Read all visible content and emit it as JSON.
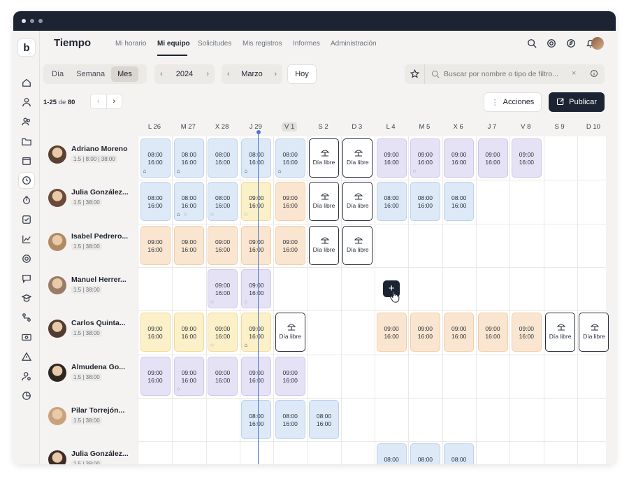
{
  "app": {
    "title": "Tiempo"
  },
  "nav": [
    {
      "label": "Mi horario"
    },
    {
      "label": "Mi equipo"
    },
    {
      "label": "Solicitudes"
    },
    {
      "label": "Mis registros"
    },
    {
      "label": "Informes"
    },
    {
      "label": "Administración"
    }
  ],
  "nav_active": "Mi equipo",
  "view_modes": [
    "Día",
    "Semana",
    "Mes"
  ],
  "view_active": "Mes",
  "year": "2024",
  "month": "Marzo",
  "today_label": "Hoy",
  "search": {
    "placeholder": "Buscar por nombre o tipo de filtro..."
  },
  "pagination": {
    "range": "1-25",
    "of_label": "de",
    "total": "80"
  },
  "actions_label": "Acciones",
  "publish_label": "Publicar",
  "days": [
    "L 26",
    "M 27",
    "X 28",
    "J 29",
    "V 1",
    "S 2",
    "D 3",
    "L 4",
    "M 5",
    "X 6",
    "J 7",
    "V 8",
    "S 9",
    "D 10"
  ],
  "today_index": 4,
  "free_label": "Día libre",
  "colors": {
    "blue": "#dde9f7",
    "purple": "#e6e2f5",
    "orange": "#fae6d0",
    "yellow": "#fbf0c8",
    "primary": "#1c2433",
    "today_line": "#4b78c9"
  },
  "people": [
    {
      "name": "Adriano Moreno",
      "meta": "1.5 | 8:00 | 38:00",
      "avatar": "#5a4030"
    },
    {
      "name": "Julia González...",
      "meta": "1.5 | 38:00",
      "avatar": "#6b4a3a"
    },
    {
      "name": "Isabel Pedrero...",
      "meta": "1.5 | 38:00",
      "avatar": "#b08a62"
    },
    {
      "name": "Manuel Herrer...",
      "meta": "1.5 | 38:00",
      "avatar": "#9b7a66"
    },
    {
      "name": "Carlos Quinta...",
      "meta": "1.5 | 38:00",
      "avatar": "#4f3b30"
    },
    {
      "name": "Almudena Go...",
      "meta": "1.5 | 38:00",
      "avatar": "#2f2622"
    },
    {
      "name": "Pilar Torrejón...",
      "meta": "1.5 | 38:00",
      "avatar": "#c9a27c"
    },
    {
      "name": "Julia González...",
      "meta": "1.5 | 38:00",
      "avatar": "#3e2c26"
    }
  ],
  "shifts": [
    [
      {
        "d": 0,
        "c": "blue",
        "s": "08:00",
        "e": "16:00",
        "i": "home-icon"
      },
      {
        "d": 1,
        "c": "blue",
        "s": "08:00",
        "e": "16:00",
        "i": "home-icon"
      },
      {
        "d": 2,
        "c": "blue",
        "s": "08:00",
        "e": "16:00"
      },
      {
        "d": 3,
        "c": "blue",
        "s": "08:00",
        "e": "16:00",
        "i": "home-icon"
      },
      {
        "d": 4,
        "c": "blue",
        "s": "08:00",
        "e": "16:00",
        "i": "home-icon"
      },
      {
        "d": 5,
        "c": "free"
      },
      {
        "d": 6,
        "c": "free"
      },
      {
        "d": 7,
        "c": "purple",
        "s": "09:00",
        "e": "16:00"
      },
      {
        "d": 8,
        "c": "purple",
        "s": "09:00",
        "e": "16:00",
        "i": "comment-icon"
      },
      {
        "d": 9,
        "c": "purple",
        "s": "09:00",
        "e": "16:00"
      },
      {
        "d": 10,
        "c": "purple",
        "s": "09:00",
        "e": "16:00"
      },
      {
        "d": 11,
        "c": "purple",
        "s": "09:00",
        "e": "16:00"
      }
    ],
    [
      {
        "d": 0,
        "c": "blue",
        "s": "08:00",
        "e": "16:00"
      },
      {
        "d": 1,
        "c": "blue",
        "s": "08:00",
        "e": "16:00",
        "i": "home-icon",
        "i2": "comment-icon"
      },
      {
        "d": 2,
        "c": "blue",
        "s": "08:00",
        "e": "16:00",
        "i": "comment-icon"
      },
      {
        "d": 3,
        "c": "yellow",
        "s": "09:00",
        "e": "16:00",
        "i": "comment-icon"
      },
      {
        "d": 4,
        "c": "orange",
        "s": "09:00",
        "e": "16:00"
      },
      {
        "d": 5,
        "c": "free"
      },
      {
        "d": 6,
        "c": "free"
      },
      {
        "d": 7,
        "c": "blue",
        "s": "08:00",
        "e": "16:00"
      },
      {
        "d": 8,
        "c": "blue",
        "s": "08:00",
        "e": "16:00"
      },
      {
        "d": 9,
        "c": "blue",
        "s": "08:00",
        "e": "16:00"
      }
    ],
    [
      {
        "d": 0,
        "c": "orange",
        "s": "09:00",
        "e": "16:00"
      },
      {
        "d": 1,
        "c": "orange",
        "s": "09:00",
        "e": "16:00"
      },
      {
        "d": 2,
        "c": "orange",
        "s": "09:00",
        "e": "16:00"
      },
      {
        "d": 3,
        "c": "orange",
        "s": "09:00",
        "e": "16:00"
      },
      {
        "d": 4,
        "c": "orange",
        "s": "09:00",
        "e": "16:00"
      },
      {
        "d": 5,
        "c": "free"
      },
      {
        "d": 6,
        "c": "free"
      }
    ],
    [
      {
        "d": 2,
        "c": "purple",
        "s": "09:00",
        "e": "16:00",
        "i": "comment-icon"
      },
      {
        "d": 3,
        "c": "purple",
        "s": "09:00",
        "e": "16:00",
        "i": "comment-icon"
      }
    ],
    [
      {
        "d": 0,
        "c": "yellow",
        "s": "09:00",
        "e": "16:00"
      },
      {
        "d": 1,
        "c": "yellow",
        "s": "09:00",
        "e": "16:00"
      },
      {
        "d": 2,
        "c": "yellow",
        "s": "09:00",
        "e": "16:00",
        "i": "comment-icon"
      },
      {
        "d": 3,
        "c": "yellow",
        "s": "09:00",
        "e": "16:00",
        "i": "home-icon"
      },
      {
        "d": 4,
        "c": "free"
      },
      {
        "d": 7,
        "c": "orange",
        "s": "09:00",
        "e": "16:00"
      },
      {
        "d": 8,
        "c": "orange",
        "s": "09:00",
        "e": "16:00"
      },
      {
        "d": 9,
        "c": "orange",
        "s": "09:00",
        "e": "16:00"
      },
      {
        "d": 10,
        "c": "orange",
        "s": "09:00",
        "e": "16:00"
      },
      {
        "d": 11,
        "c": "orange",
        "s": "09:00",
        "e": "16:00"
      },
      {
        "d": 12,
        "c": "free"
      },
      {
        "d": 13,
        "c": "free"
      }
    ],
    [
      {
        "d": 0,
        "c": "purple",
        "s": "09:00",
        "e": "16:00"
      },
      {
        "d": 1,
        "c": "purple",
        "s": "09:00",
        "e": "16:00",
        "i": "comment-icon"
      },
      {
        "d": 2,
        "c": "purple",
        "s": "09:00",
        "e": "16:00"
      },
      {
        "d": 3,
        "c": "purple",
        "s": "09:00",
        "e": "16:00"
      },
      {
        "d": 4,
        "c": "purple",
        "s": "09:00",
        "e": "16:00"
      }
    ],
    [
      {
        "d": 3,
        "c": "blue",
        "s": "08:00",
        "e": "16:00"
      },
      {
        "d": 4,
        "c": "blue",
        "s": "08:00",
        "e": "16:00"
      },
      {
        "d": 5,
        "c": "blue",
        "s": "08:00",
        "e": "16:00"
      }
    ],
    [
      {
        "d": 7,
        "c": "blue",
        "s": "08:00",
        "e": ""
      },
      {
        "d": 8,
        "c": "blue",
        "s": "08:00",
        "e": ""
      },
      {
        "d": 9,
        "c": "blue",
        "s": "08:00",
        "e": ""
      }
    ]
  ],
  "add_button": {
    "row": 3,
    "day": 7,
    "label": "+"
  }
}
